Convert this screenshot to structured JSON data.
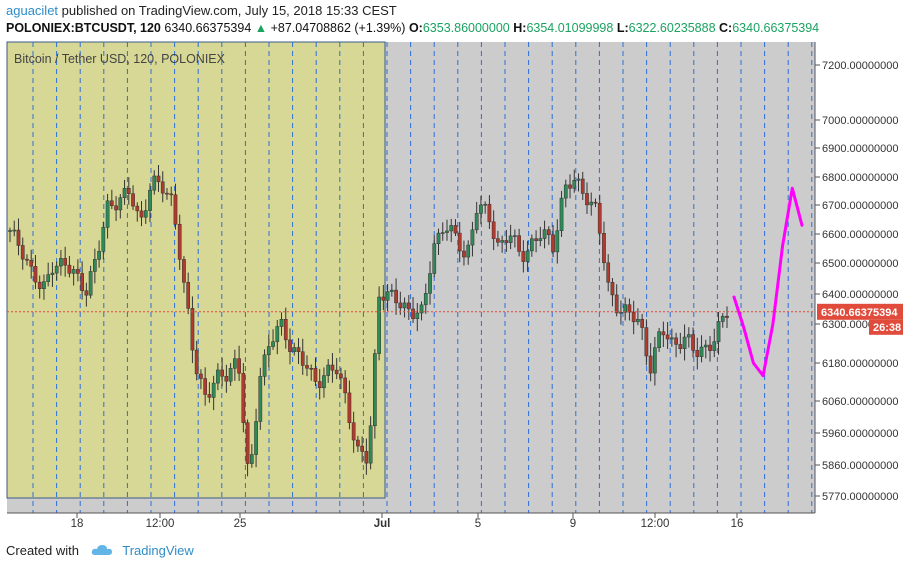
{
  "header": {
    "author": "aguacilet",
    "published_text": "published on TradingView.com, July 15, 2018 15:33 CEST",
    "symbol": "POLONIEX:BTCUSDT, 120",
    "last": "6340.66375394",
    "change": "+87.04708862 (+1.39%)",
    "o_label": "O:",
    "o_value": "6353.86000000",
    "h_label": "H:",
    "h_value": "6354.01099998",
    "l_label": "L:",
    "l_value": "6322.60235888",
    "c_label": "C:",
    "c_value": "6340.66375394"
  },
  "footer": {
    "created_with": "Created with",
    "brand": "TradingView"
  },
  "chart_data": {
    "type": "candlestick",
    "title": "Bitcoin / Tether USD, 120, POLONIEX",
    "x_tick_labels": [
      "18",
      "12:00",
      "25",
      "Jul",
      "5",
      "9",
      "12:00",
      "16"
    ],
    "y_tick_labels": [
      "7200.00000000",
      "7000.00000000",
      "6900.00000000",
      "6800.00000000",
      "6700.00000000",
      "6600.00000000",
      "6500.00000000",
      "6400.00000000",
      "6300.00000000",
      "6180.00000000",
      "6060.00000000",
      "5960.00000000",
      "5860.00000000",
      "5770.00000000"
    ],
    "last_price_label": "6340.66375394",
    "countdown_label": "26:38",
    "price_trace": [
      6600,
      6560,
      6470,
      6400,
      6510,
      6490,
      6460,
      6420,
      6510,
      6700,
      6720,
      6740,
      6640,
      6780,
      6760,
      6720,
      6420,
      6180,
      6080,
      6120,
      6150,
      6200,
      5780,
      6150,
      6250,
      6290,
      6230,
      6180,
      6120,
      6150,
      6160,
      6060,
      5900,
      5870,
      6420,
      6390,
      6360,
      6350,
      6330,
      6560,
      6640,
      6580,
      6520,
      6700,
      6660,
      6560,
      6600,
      6520,
      6570,
      6600,
      6560,
      6760,
      6780,
      6740,
      6680,
      6420,
      6360,
      6330,
      6300,
      6170,
      6280,
      6240,
      6260,
      6210,
      6230,
      6260,
      6340
    ],
    "projection_values": [
      6390,
      6290,
      6180,
      6140,
      6300,
      6560,
      6760,
      6630
    ],
    "colors": {
      "up": "#2e8b57",
      "down": "#b03a2e",
      "projection": "#ff00ff",
      "highlight": "#d8d896",
      "plot_bg": "#cccccc",
      "price_line": "#e04b3b"
    }
  }
}
